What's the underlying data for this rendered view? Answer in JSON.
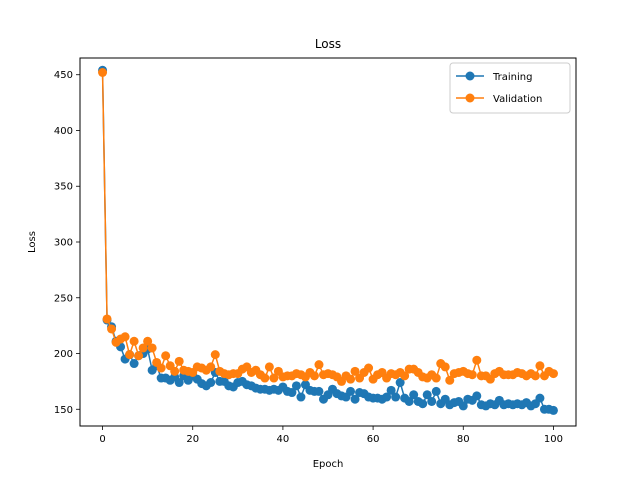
{
  "chart_data": {
    "type": "line",
    "title": "Loss",
    "xlabel": "Epoch",
    "ylabel": "Loss",
    "xlim": [
      -5,
      105
    ],
    "ylim": [
      135,
      465
    ],
    "xticks": [
      0,
      20,
      40,
      60,
      80,
      100
    ],
    "yticks": [
      150,
      200,
      250,
      300,
      350,
      400,
      450
    ],
    "grid": false,
    "legend_position": "top-right",
    "x": [
      0,
      1,
      2,
      3,
      4,
      5,
      6,
      7,
      8,
      9,
      10,
      11,
      12,
      13,
      14,
      15,
      16,
      17,
      18,
      19,
      20,
      21,
      22,
      23,
      24,
      25,
      26,
      27,
      28,
      29,
      30,
      31,
      32,
      33,
      34,
      35,
      36,
      37,
      38,
      39,
      40,
      41,
      42,
      43,
      44,
      45,
      46,
      47,
      48,
      49,
      50,
      51,
      52,
      53,
      54,
      55,
      56,
      57,
      58,
      59,
      60,
      61,
      62,
      63,
      64,
      65,
      66,
      67,
      68,
      69,
      70,
      71,
      72,
      73,
      74,
      75,
      76,
      77,
      78,
      79,
      80,
      81,
      82,
      83,
      84,
      85,
      86,
      87,
      88,
      89,
      90,
      91,
      92,
      93,
      94,
      95,
      96,
      97,
      98,
      99,
      100
    ],
    "series": [
      {
        "name": "Training",
        "color": "#1f77b4",
        "values": [
          454,
          230,
          224,
          211,
          206,
          195,
          199,
          191,
          198,
          200,
          204,
          185,
          189,
          178,
          178,
          176,
          179,
          174,
          180,
          176,
          180,
          177,
          173,
          171,
          174,
          183,
          175,
          175,
          171,
          170,
          174,
          175,
          172,
          171,
          169,
          168,
          168,
          167,
          168,
          167,
          170,
          166,
          165,
          171,
          161,
          172,
          167,
          166,
          166,
          159,
          163,
          168,
          164,
          162,
          161,
          166,
          159,
          165,
          164,
          161,
          160,
          160,
          159,
          161,
          167,
          161,
          174,
          160,
          157,
          163,
          157,
          155,
          163,
          157,
          166,
          155,
          159,
          154,
          156,
          157,
          153,
          159,
          158,
          162,
          154,
          153,
          155,
          154,
          158,
          154,
          155,
          154,
          155,
          154,
          156,
          153,
          155,
          160,
          150,
          150,
          149
        ]
      },
      {
        "name": "Validation",
        "color": "#ff7f0e",
        "values": [
          452,
          231,
          222,
          210,
          213,
          215,
          199,
          211,
          198,
          205,
          211,
          205,
          192,
          187,
          198,
          189,
          184,
          193,
          185,
          184,
          183,
          188,
          187,
          185,
          188,
          199,
          184,
          182,
          181,
          182,
          182,
          186,
          188,
          183,
          185,
          181,
          178,
          188,
          178,
          184,
          179,
          180,
          180,
          182,
          181,
          179,
          183,
          180,
          190,
          181,
          182,
          181,
          179,
          175,
          180,
          177,
          184,
          178,
          183,
          187,
          177,
          181,
          183,
          178,
          182,
          181,
          183,
          180,
          186,
          186,
          183,
          179,
          178,
          181,
          178,
          191,
          188,
          176,
          182,
          183,
          184,
          182,
          181,
          194,
          180,
          180,
          177,
          182,
          184,
          181,
          181,
          181,
          183,
          182,
          180,
          182,
          180,
          189,
          180,
          184,
          182
        ]
      }
    ]
  }
}
